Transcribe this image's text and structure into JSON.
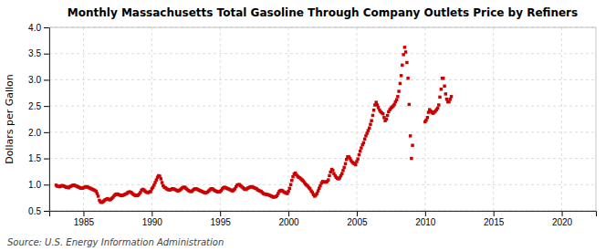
{
  "chart_data": {
    "type": "scatter",
    "title": "Monthly Massachusetts Total Gasoline Through Company Outlets Price by Refiners",
    "ylabel": "Dollars per Gallon",
    "annotations": [
      "Source: U.S. Energy Information Administration"
    ],
    "color": "#cc0000",
    "marker": "square",
    "grid": true,
    "xlim": [
      1982.5,
      2022.5
    ],
    "ylim": [
      0.5,
      4.0
    ],
    "xticks": [
      1985,
      1990,
      1995,
      2000,
      2005,
      2010,
      2015,
      2020
    ],
    "yticks": [
      0.5,
      {
        "value": 1.0,
        "label": "1.0"
      },
      1.5,
      {
        "value": 2.0,
        "label": "2.0"
      },
      2.5,
      {
        "value": 3.0,
        "label": "3.0"
      },
      3.5,
      {
        "value": 4.0,
        "label": "4.0"
      }
    ],
    "x": [
      1983.0,
      1983.08,
      1983.17,
      1983.25,
      1983.33,
      1983.42,
      1983.5,
      1983.58,
      1983.67,
      1983.75,
      1983.83,
      1983.92,
      1984.0,
      1984.08,
      1984.17,
      1984.25,
      1984.33,
      1984.42,
      1984.5,
      1984.58,
      1984.67,
      1984.75,
      1984.83,
      1984.92,
      1985.0,
      1985.08,
      1985.17,
      1985.25,
      1985.33,
      1985.42,
      1985.5,
      1985.58,
      1985.67,
      1985.75,
      1985.83,
      1985.92,
      1986.0,
      1986.08,
      1986.17,
      1986.25,
      1986.33,
      1986.42,
      1986.5,
      1986.58,
      1986.67,
      1986.75,
      1986.83,
      1986.92,
      1987.0,
      1987.08,
      1987.17,
      1987.25,
      1987.33,
      1987.42,
      1987.5,
      1987.58,
      1987.67,
      1987.75,
      1987.83,
      1987.92,
      1988.0,
      1988.08,
      1988.17,
      1988.25,
      1988.33,
      1988.42,
      1988.5,
      1988.58,
      1988.67,
      1988.75,
      1988.83,
      1988.92,
      1989.0,
      1989.08,
      1989.17,
      1989.25,
      1989.33,
      1989.42,
      1989.5,
      1989.58,
      1989.67,
      1989.75,
      1989.83,
      1989.92,
      1990.0,
      1990.08,
      1990.17,
      1990.25,
      1990.33,
      1990.42,
      1990.5,
      1990.58,
      1990.67,
      1990.75,
      1990.83,
      1990.92,
      1991.0,
      1991.08,
      1991.17,
      1991.25,
      1991.33,
      1991.42,
      1991.5,
      1991.58,
      1991.67,
      1991.75,
      1991.83,
      1991.92,
      1992.0,
      1992.08,
      1992.17,
      1992.25,
      1992.33,
      1992.42,
      1992.5,
      1992.58,
      1992.67,
      1992.75,
      1992.83,
      1992.92,
      1993.0,
      1993.08,
      1993.17,
      1993.25,
      1993.33,
      1993.42,
      1993.5,
      1993.58,
      1993.67,
      1993.75,
      1993.83,
      1993.92,
      1994.0,
      1994.08,
      1994.17,
      1994.25,
      1994.33,
      1994.42,
      1994.5,
      1994.58,
      1994.67,
      1994.75,
      1994.83,
      1994.92,
      1995.0,
      1995.08,
      1995.17,
      1995.25,
      1995.33,
      1995.42,
      1995.5,
      1995.58,
      1995.67,
      1995.75,
      1995.83,
      1995.92,
      1996.0,
      1996.08,
      1996.17,
      1996.25,
      1996.33,
      1996.42,
      1996.5,
      1996.58,
      1996.67,
      1996.75,
      1996.83,
      1996.92,
      1997.0,
      1997.08,
      1997.17,
      1997.25,
      1997.33,
      1997.42,
      1997.5,
      1997.58,
      1997.67,
      1997.75,
      1997.83,
      1997.92,
      1998.0,
      1998.08,
      1998.17,
      1998.25,
      1998.33,
      1998.42,
      1998.5,
      1998.58,
      1998.67,
      1998.75,
      1998.83,
      1998.92,
      1999.0,
      1999.08,
      1999.17,
      1999.25,
      1999.33,
      1999.42,
      1999.5,
      1999.58,
      1999.67,
      1999.75,
      1999.83,
      1999.92,
      2000.0,
      2000.08,
      2000.17,
      2000.25,
      2000.33,
      2000.42,
      2000.5,
      2000.58,
      2000.67,
      2000.75,
      2000.83,
      2000.92,
      2001.0,
      2001.08,
      2001.17,
      2001.25,
      2001.33,
      2001.42,
      2001.5,
      2001.58,
      2001.67,
      2001.75,
      2001.83,
      2001.92,
      2002.0,
      2002.08,
      2002.17,
      2002.25,
      2002.33,
      2002.42,
      2002.5,
      2002.58,
      2002.67,
      2002.75,
      2002.83,
      2002.92,
      2003.0,
      2003.08,
      2003.17,
      2003.25,
      2003.33,
      2003.42,
      2003.5,
      2003.58,
      2003.67,
      2003.75,
      2003.83,
      2003.92,
      2004.0,
      2004.08,
      2004.17,
      2004.25,
      2004.33,
      2004.42,
      2004.5,
      2004.58,
      2004.67,
      2004.75,
      2004.83,
      2004.92,
      2005.0,
      2005.08,
      2005.17,
      2005.25,
      2005.33,
      2005.42,
      2005.5,
      2005.58,
      2005.67,
      2005.75,
      2005.83,
      2005.92,
      2006.0,
      2006.08,
      2006.17,
      2006.25,
      2006.33,
      2006.42,
      2006.5,
      2006.58,
      2006.67,
      2006.75,
      2006.83,
      2006.92,
      2007.0,
      2007.08,
      2007.17,
      2007.25,
      2007.33,
      2007.42,
      2007.5,
      2007.58,
      2007.67,
      2007.75,
      2007.83,
      2007.92,
      2008.0,
      2008.08,
      2008.17,
      2008.25,
      2008.33,
      2008.42,
      2008.5,
      2008.58,
      2008.67,
      2008.75,
      2008.83,
      2008.92,
      2009.0,
      2009.08,
      2010.0,
      2010.08,
      2010.17,
      2010.25,
      2010.33,
      2010.42,
      2010.5,
      2010.58,
      2010.67,
      2010.75,
      2010.83,
      2010.92,
      2011.0,
      2011.08,
      2011.17,
      2011.25,
      2011.33,
      2011.42,
      2011.5,
      2011.58,
      2011.67,
      2011.75,
      2011.83,
      2011.92
    ],
    "values": [
      0.99,
      0.97,
      0.97,
      0.96,
      0.97,
      0.98,
      0.98,
      0.97,
      0.96,
      0.95,
      0.95,
      0.94,
      0.96,
      0.97,
      0.98,
      0.99,
      0.99,
      0.98,
      0.97,
      0.96,
      0.95,
      0.94,
      0.93,
      0.93,
      0.94,
      0.95,
      0.96,
      0.96,
      0.95,
      0.94,
      0.93,
      0.92,
      0.91,
      0.9,
      0.89,
      0.87,
      0.83,
      0.78,
      0.7,
      0.67,
      0.66,
      0.67,
      0.69,
      0.71,
      0.72,
      0.73,
      0.72,
      0.71,
      0.72,
      0.74,
      0.76,
      0.79,
      0.81,
      0.82,
      0.82,
      0.81,
      0.8,
      0.79,
      0.79,
      0.8,
      0.81,
      0.82,
      0.83,
      0.85,
      0.86,
      0.86,
      0.85,
      0.83,
      0.81,
      0.8,
      0.79,
      0.79,
      0.8,
      0.82,
      0.85,
      0.89,
      0.91,
      0.9,
      0.88,
      0.86,
      0.85,
      0.85,
      0.86,
      0.87,
      0.92,
      0.95,
      0.99,
      1.04,
      1.09,
      1.14,
      1.17,
      1.16,
      1.11,
      1.04,
      0.98,
      0.95,
      0.94,
      0.92,
      0.91,
      0.9,
      0.9,
      0.91,
      0.92,
      0.92,
      0.91,
      0.9,
      0.89,
      0.88,
      0.89,
      0.9,
      0.92,
      0.94,
      0.95,
      0.95,
      0.93,
      0.91,
      0.89,
      0.88,
      0.87,
      0.87,
      0.89,
      0.91,
      0.92,
      0.92,
      0.91,
      0.9,
      0.89,
      0.88,
      0.87,
      0.86,
      0.85,
      0.84,
      0.85,
      0.86,
      0.88,
      0.9,
      0.92,
      0.92,
      0.91,
      0.89,
      0.88,
      0.87,
      0.86,
      0.86,
      0.87,
      0.89,
      0.92,
      0.94,
      0.95,
      0.94,
      0.93,
      0.92,
      0.91,
      0.9,
      0.89,
      0.88,
      0.9,
      0.92,
      0.96,
      0.99,
      1.0,
      1.0,
      0.98,
      0.96,
      0.94,
      0.92,
      0.91,
      0.91,
      0.93,
      0.94,
      0.95,
      0.96,
      0.96,
      0.95,
      0.94,
      0.93,
      0.92,
      0.9,
      0.89,
      0.88,
      0.87,
      0.85,
      0.83,
      0.82,
      0.82,
      0.81,
      0.81,
      0.8,
      0.79,
      0.78,
      0.77,
      0.76,
      0.77,
      0.77,
      0.79,
      0.83,
      0.87,
      0.89,
      0.89,
      0.88,
      0.86,
      0.85,
      0.84,
      0.83,
      0.87,
      0.93,
      1.0,
      1.08,
      1.15,
      1.2,
      1.22,
      1.19,
      1.16,
      1.14,
      1.13,
      1.11,
      1.09,
      1.07,
      1.04,
      1.01,
      0.99,
      0.97,
      0.94,
      0.92,
      0.88,
      0.85,
      0.81,
      0.78,
      0.8,
      0.83,
      0.88,
      0.93,
      0.98,
      1.03,
      1.06,
      1.05,
      1.05,
      1.05,
      1.06,
      1.09,
      1.17,
      1.24,
      1.29,
      1.27,
      1.21,
      1.17,
      1.14,
      1.12,
      1.11,
      1.13,
      1.17,
      1.21,
      1.27,
      1.33,
      1.4,
      1.48,
      1.53,
      1.53,
      1.5,
      1.46,
      1.43,
      1.41,
      1.4,
      1.38,
      1.44,
      1.49,
      1.57,
      1.64,
      1.7,
      1.76,
      1.8,
      1.87,
      1.93,
      1.98,
      2.03,
      2.08,
      2.15,
      2.22,
      2.32,
      2.42,
      2.52,
      2.57,
      2.52,
      2.47,
      2.42,
      2.39,
      2.37,
      2.35,
      2.28,
      2.22,
      2.25,
      2.32,
      2.39,
      2.43,
      2.46,
      2.48,
      2.5,
      2.53,
      2.58,
      2.62,
      2.68,
      2.78,
      2.93,
      3.08,
      3.28,
      3.48,
      3.62,
      3.53,
      3.33,
      3.03,
      2.53,
      1.93,
      1.5,
      1.75,
      2.2,
      2.23,
      2.28,
      2.38,
      2.43,
      2.4,
      2.38,
      2.36,
      2.38,
      2.4,
      2.43,
      2.46,
      2.52,
      2.67,
      2.82,
      3.03,
      3.03,
      2.88,
      2.73,
      2.63,
      2.58,
      2.58,
      2.63,
      2.68
    ]
  }
}
